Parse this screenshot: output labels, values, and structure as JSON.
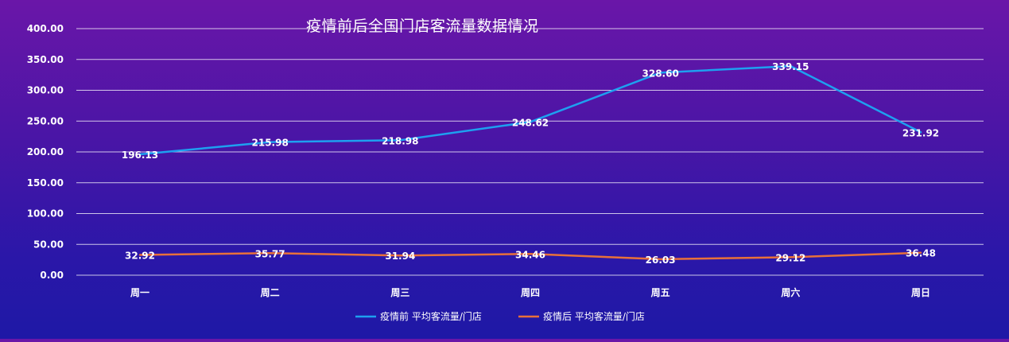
{
  "chart_data": {
    "type": "line",
    "title": "疫情前后全国门店客流量数据情况",
    "categories": [
      "周一",
      "周二",
      "周三",
      "周四",
      "周五",
      "周六",
      "周日"
    ],
    "ylim": [
      0,
      400
    ],
    "yticks": [
      "0.00",
      "50.00",
      "100.00",
      "150.00",
      "200.00",
      "250.00",
      "300.00",
      "350.00",
      "400.00"
    ],
    "grid": true,
    "legend_position": "bottom",
    "series": [
      {
        "name": "疫情前 平均客流量/门店",
        "color": "#1ea0f0",
        "values": [
          196.13,
          215.98,
          218.98,
          248.62,
          328.6,
          339.15,
          231.92
        ],
        "labels": [
          "196.13",
          "215.98",
          "218.98",
          "248.62",
          "328.60",
          "339.15",
          "231.92"
        ]
      },
      {
        "name": "疫情后 平均客流量/门店",
        "color": "#e8703a",
        "values": [
          32.92,
          35.77,
          31.94,
          34.46,
          26.03,
          29.12,
          36.48
        ],
        "labels": [
          "32.92",
          "35.77",
          "31.94",
          "34.46",
          "26.03",
          "29.12",
          "36.48"
        ]
      }
    ]
  }
}
